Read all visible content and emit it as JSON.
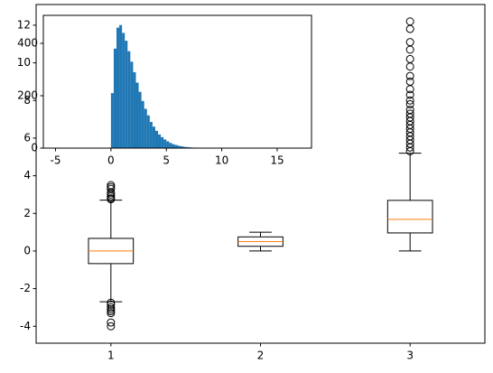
{
  "chart_data": [
    {
      "type": "boxplot",
      "xlim": [
        0.5,
        3.5
      ],
      "xticks": [
        1,
        2,
        3
      ],
      "ylim": [
        -4.9,
        13.1
      ],
      "yticks": [
        -4,
        -2,
        0,
        2,
        4,
        6,
        8,
        10,
        12
      ],
      "box_color": "#000000",
      "median_color": "#ff7f0e",
      "series": [
        {
          "position": 1,
          "whislo": -2.7,
          "q1": -0.67,
          "med": 0,
          "q3": 0.67,
          "whishi": 2.7,
          "fliers": [
            2.75,
            2.8,
            2.9,
            3.0,
            3.1,
            3.3,
            3.4,
            3.5,
            -2.75,
            -2.85,
            -3.0,
            -3.1,
            -3.2,
            -3.3,
            -3.8,
            -4.0
          ]
        },
        {
          "position": 2,
          "whislo": 0,
          "q1": 0.25,
          "med": 0.5,
          "q3": 0.75,
          "whishi": 1,
          "fliers": []
        },
        {
          "position": 3,
          "whislo": 0,
          "q1": 0.96,
          "med": 1.68,
          "q3": 2.69,
          "whishi": 5.2,
          "fliers": [
            5.3,
            5.5,
            5.7,
            5.9,
            6.1,
            6.3,
            6.5,
            6.7,
            6.9,
            7.1,
            7.3,
            7.5,
            7.8,
            8.0,
            8.3,
            8.6,
            9.0,
            9.3,
            9.8,
            10.2,
            10.7,
            11.1,
            11.8,
            12.2
          ]
        }
      ]
    },
    {
      "type": "histogram",
      "color": "#1f77b4",
      "xlim": [
        -6.1,
        18.1
      ],
      "xticks": [
        -5,
        0,
        5,
        10,
        15
      ],
      "ylim": [
        0,
        507
      ],
      "yticks": [
        0,
        200,
        400
      ],
      "bins": [
        0,
        0.25,
        0.5,
        0.75,
        1,
        1.25,
        1.5,
        1.75,
        2,
        2.25,
        2.5,
        2.75,
        3,
        3.25,
        3.5,
        3.75,
        4,
        4.25,
        4.5,
        4.75,
        5,
        5.25,
        5.5,
        5.75,
        6,
        6.25,
        6.5,
        6.75,
        7,
        7.25,
        7.5,
        7.75,
        8,
        8.25,
        8.5,
        8.75,
        9
      ],
      "values": [
        210,
        380,
        460,
        470,
        440,
        410,
        370,
        330,
        290,
        250,
        215,
        180,
        150,
        125,
        100,
        82,
        66,
        52,
        42,
        33,
        26,
        20,
        15,
        12,
        9,
        7,
        5,
        4,
        3,
        2,
        2,
        1,
        1,
        1,
        0,
        1
      ]
    }
  ]
}
